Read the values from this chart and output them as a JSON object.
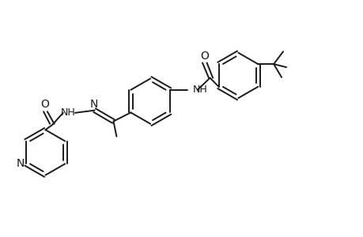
{
  "bg_color": "#ffffff",
  "line_color": "#1a1a1a",
  "line_width": 1.4,
  "figsize": [
    4.6,
    3.0
  ],
  "dpi": 100,
  "xlim": [
    0,
    11
  ],
  "ylim": [
    -0.5,
    7
  ]
}
